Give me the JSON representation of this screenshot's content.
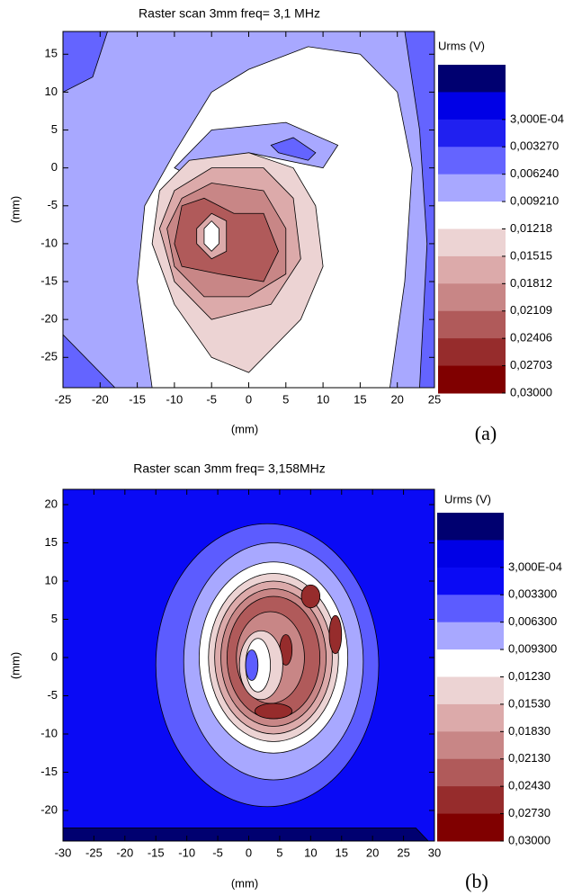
{
  "chart_data": [
    {
      "type": "contour",
      "title": "Raster scan  3mm  freq= 3,1 MHz",
      "x_label": "(mm)",
      "y_label": "(mm)",
      "panel_label": "(a)",
      "xlim": [
        -25,
        25
      ],
      "ylim": [
        -29,
        18
      ],
      "xticks": [
        -25,
        -20,
        -15,
        -10,
        -5,
        0,
        5,
        10,
        15,
        20,
        25
      ],
      "yticks": [
        -25,
        -20,
        -15,
        -10,
        -5,
        0,
        5,
        10,
        15
      ],
      "colorbar_title": "Urms (V)",
      "levels": [
        {
          "value": 0.0003,
          "label": "3,000E-04"
        },
        {
          "value": 0.00327,
          "label": "0,003270"
        },
        {
          "value": 0.00624,
          "label": "0,006240"
        },
        {
          "value": 0.00921,
          "label": "0,009210"
        },
        {
          "value": 0.01218,
          "label": "0,01218"
        },
        {
          "value": 0.01515,
          "label": "0,01515"
        },
        {
          "value": 0.01812,
          "label": "0,01812"
        },
        {
          "value": 0.02109,
          "label": "0,02109"
        },
        {
          "value": 0.02406,
          "label": "0,02406"
        },
        {
          "value": 0.02703,
          "label": "0,02703"
        },
        {
          "value": 0.03,
          "label": "0,03000"
        }
      ],
      "colors": [
        "#000070",
        "#0000e6",
        "#2020f0",
        "#6464ff",
        "#a8a8ff",
        "#ffffff",
        "#ecd3d3",
        "#dcaaaa",
        "#c88686",
        "#b05a5a",
        "#962c2c",
        "#800000"
      ],
      "regions": [
        {
          "level": 0.00624,
          "x": [
            -25,
            25,
            25,
            -25
          ],
          "y": [
            18,
            18,
            -29,
            -29
          ]
        },
        {
          "level": 0.00327,
          "x": [
            -25,
            -19,
            -21,
            -25
          ],
          "y": [
            18,
            18,
            12,
            10
          ]
        },
        {
          "level": 0.00327,
          "x": [
            21,
            25,
            25,
            23,
            24,
            23
          ],
          "y": [
            18,
            18,
            -29,
            -29,
            -10,
            5
          ]
        },
        {
          "level": 0.00327,
          "x": [
            -25,
            -18,
            -20,
            -25
          ],
          "y": [
            -22,
            -29,
            -29,
            -29
          ]
        },
        {
          "level": 0.00921,
          "x": [
            -13,
            -15,
            -14,
            -10,
            -5,
            0,
            8,
            15,
            20,
            22,
            21,
            19
          ],
          "y": [
            -29,
            -15,
            -5,
            2,
            10,
            13,
            16,
            15,
            10,
            0,
            -15,
            -29
          ]
        },
        {
          "level": 0.00624,
          "x": [
            -10,
            -5,
            5,
            12,
            10,
            0,
            -8
          ],
          "y": [
            0,
            5,
            6,
            3,
            0,
            2,
            -1
          ]
        },
        {
          "level": 0.00327,
          "x": [
            3,
            6,
            9,
            8,
            4
          ],
          "y": [
            3,
            4,
            2,
            1,
            2
          ]
        },
        {
          "level": 0.01218,
          "x": [
            -13,
            -12,
            -8,
            0,
            6,
            9,
            10,
            7,
            0,
            -5,
            -10
          ],
          "y": [
            -10,
            -3,
            1,
            2,
            0,
            -5,
            -13,
            -20,
            -27,
            -25,
            -18
          ]
        },
        {
          "level": 0.01515,
          "x": [
            -12,
            -10,
            -5,
            2,
            6,
            7,
            3,
            -5,
            -10
          ],
          "y": [
            -8,
            -3,
            0,
            0,
            -4,
            -12,
            -18,
            -20,
            -15
          ]
        },
        {
          "level": 0.01812,
          "x": [
            -11,
            -9,
            -5,
            2,
            5,
            5,
            0,
            -6,
            -10
          ],
          "y": [
            -8,
            -4,
            -2,
            -3,
            -8,
            -14,
            -17,
            -17,
            -13
          ]
        },
        {
          "level": 0.02109,
          "x": [
            -10,
            -9,
            -6,
            -2,
            2,
            4,
            2,
            -4,
            -9
          ],
          "y": [
            -10,
            -5,
            -4,
            -6,
            -6,
            -11,
            -15,
            -14,
            -13
          ]
        },
        {
          "level": 0.01515,
          "x": [
            -7,
            -5,
            -3,
            -3,
            -5,
            -7
          ],
          "y": [
            -8,
            -6,
            -7,
            -11,
            -12,
            -10
          ]
        },
        {
          "level": 0.00921,
          "x": [
            -6,
            -5,
            -4,
            -4,
            -5,
            -6
          ],
          "y": [
            -8,
            -7,
            -8,
            -10,
            -11,
            -10
          ]
        }
      ]
    },
    {
      "type": "contour",
      "title": "Raster scan  3mm  freq= 3,158MHz",
      "x_label": "(mm)",
      "y_label": "(mm)",
      "panel_label": "(b)",
      "xlim": [
        -30,
        30
      ],
      "ylim": [
        -24,
        22
      ],
      "xticks": [
        -30,
        -25,
        -20,
        -15,
        -10,
        -5,
        0,
        5,
        10,
        15,
        20,
        25,
        30
      ],
      "yticks": [
        -20,
        -15,
        -10,
        -5,
        0,
        5,
        10,
        15,
        20
      ],
      "colorbar_title": "Urms (V)",
      "levels": [
        {
          "value": 0.0003,
          "label": "3,000E-04"
        },
        {
          "value": 0.0033,
          "label": "0,003300"
        },
        {
          "value": 0.0063,
          "label": "0,006300"
        },
        {
          "value": 0.0093,
          "label": "0,009300"
        },
        {
          "value": 0.0123,
          "label": "0,01230"
        },
        {
          "value": 0.0153,
          "label": "0,01530"
        },
        {
          "value": 0.0183,
          "label": "0,01830"
        },
        {
          "value": 0.0213,
          "label": "0,02130"
        },
        {
          "value": 0.0243,
          "label": "0,02430"
        },
        {
          "value": 0.0273,
          "label": "0,02730"
        },
        {
          "value": 0.03,
          "label": "0,03000"
        }
      ],
      "colors": [
        "#000070",
        "#0000e6",
        "#0a0af5",
        "#5c5cff",
        "#a8a8ff",
        "#ffffff",
        "#ecd3d3",
        "#dcaaaa",
        "#c88686",
        "#b05a5a",
        "#962c2c",
        "#800000"
      ],
      "regions": [
        {
          "level": 0.0003,
          "x": [
            -30,
            30,
            30,
            -30
          ],
          "y": [
            22,
            22,
            -24,
            -24
          ]
        },
        {
          "level": 0,
          "x": [
            -30,
            27,
            29,
            -30
          ],
          "y": [
            -22.3,
            -22.3,
            -24,
            -24
          ]
        },
        {
          "level": 0.0033,
          "cx": 3,
          "cy": -1,
          "rx": 18,
          "ry": 18.5
        },
        {
          "level": 0.0063,
          "cx": 4,
          "cy": -0.5,
          "rx": 14.5,
          "ry": 15.5
        },
        {
          "level": 0.0093,
          "cx": 4,
          "cy": 0,
          "rx": 12,
          "ry": 12.5
        },
        {
          "level": 0.0123,
          "cx": 4,
          "cy": 0,
          "rx": 10.5,
          "ry": 11
        },
        {
          "level": 0.0153,
          "cx": 4,
          "cy": 0,
          "rx": 9.5,
          "ry": 10
        },
        {
          "level": 0.0183,
          "cx": 4,
          "cy": 0,
          "rx": 8.5,
          "ry": 9
        },
        {
          "level": 0.0213,
          "cx": 4,
          "cy": 0,
          "rx": 7.5,
          "ry": 8
        },
        {
          "level": 0.0183,
          "cx": 3.5,
          "cy": 0,
          "rx": 5.5,
          "ry": 6
        },
        {
          "level": 0.0243,
          "cx": 10,
          "cy": 8,
          "rx": 1.5,
          "ry": 1.5
        },
        {
          "level": 0.0243,
          "cx": 14,
          "cy": 3,
          "rx": 1,
          "ry": 2.5
        },
        {
          "level": 0.0243,
          "cx": 6,
          "cy": 1,
          "rx": 1,
          "ry": 2
        },
        {
          "level": 0.0243,
          "cx": 4,
          "cy": -7,
          "rx": 3,
          "ry": 1
        },
        {
          "level": 0.0123,
          "cx": 2,
          "cy": -1,
          "rx": 3.5,
          "ry": 4.5
        },
        {
          "level": 0.0093,
          "cx": 1.5,
          "cy": -1,
          "rx": 2,
          "ry": 3.5
        },
        {
          "level": 0.0033,
          "cx": 0.5,
          "cy": -1,
          "rx": 1,
          "ry": 2
        }
      ]
    }
  ]
}
